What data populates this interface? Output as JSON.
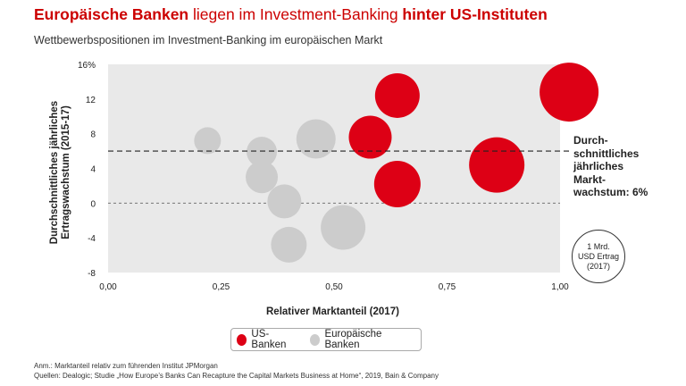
{
  "header": {
    "title_part1": "Europäische Banken",
    "title_part2": " liegen im Investment-Banking ",
    "title_part3": "hinter US-Instituten",
    "subtitle": "Wettbewerbspositionen im Investment-Banking im europäischen Markt"
  },
  "chart_data": {
    "type": "scatter",
    "xlabel": "Relativer Marktanteil (2017)",
    "ylabel": "Durchschnittliches jährliches Ertragswachstum (2015-17)",
    "xlim": [
      0,
      1
    ],
    "ylim": [
      -8,
      16
    ],
    "x_ticks": [
      "0,00",
      "0,25",
      "0,50",
      "0,75",
      "1,00"
    ],
    "y_ticks": [
      "16%",
      "12",
      "8",
      "4",
      "0",
      "-4",
      "-8"
    ],
    "reference_line": {
      "y": 6,
      "label": "Durch-\nschnittliches\njährliches\nMarkt-\nwachstum: 6%"
    },
    "colors": {
      "us": "#dd0015",
      "eu": "#cccccc"
    },
    "series": [
      {
        "name": "US-Banken",
        "points": [
          {
            "x": 0.64,
            "y": 12.4,
            "r": 25
          },
          {
            "x": 0.58,
            "y": 7.6,
            "r": 24
          },
          {
            "x": 0.64,
            "y": 2.2,
            "r": 26
          },
          {
            "x": 0.86,
            "y": 4.4,
            "r": 31
          },
          {
            "x": 1.02,
            "y": 12.8,
            "r": 33
          }
        ]
      },
      {
        "name": "Europäische Banken",
        "points": [
          {
            "x": 0.22,
            "y": 7.2,
            "r": 15
          },
          {
            "x": 0.34,
            "y": 5.9,
            "r": 17
          },
          {
            "x": 0.34,
            "y": 3.0,
            "r": 18
          },
          {
            "x": 0.39,
            "y": 0.2,
            "r": 19
          },
          {
            "x": 0.4,
            "y": -4.8,
            "r": 20
          },
          {
            "x": 0.46,
            "y": 7.4,
            "r": 22
          },
          {
            "x": 0.52,
            "y": -2.8,
            "r": 25
          }
        ]
      }
    ],
    "size_reference": "1 Mrd.\nUSD Ertrag\n(2017)"
  },
  "legend": {
    "us": "US-Banken",
    "eu": "Europäische Banken"
  },
  "notes": {
    "line1": "Anm.: Marktanteil relativ zum führenden Institut JPMorgan",
    "line2": "Quellen: Dealogic; Studie „How Europe’s Banks Can Recapture the Capital Markets Business at Home“, 2019, Bain & Company"
  }
}
